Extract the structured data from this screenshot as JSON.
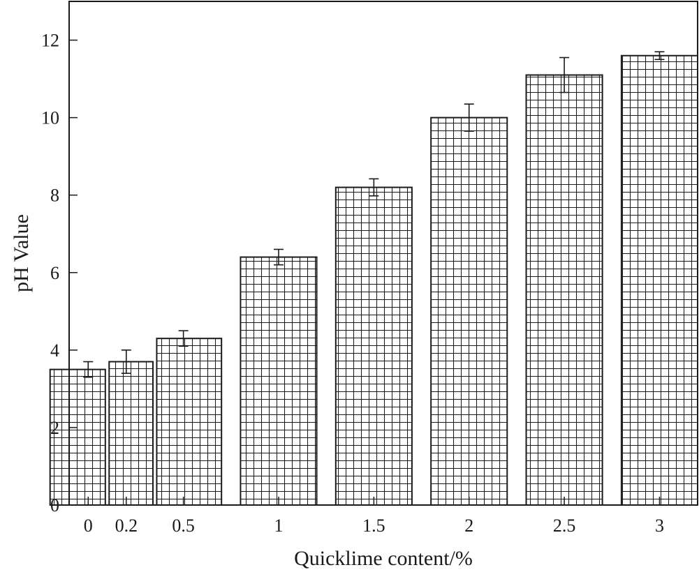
{
  "chart_data": {
    "type": "bar",
    "title": "",
    "xlabel": "Quicklime content/%",
    "ylabel": "pH Value",
    "ylim": [
      0,
      13
    ],
    "yticks": [
      0,
      2,
      4,
      6,
      8,
      10,
      12
    ],
    "grid": false,
    "categories": [
      "0",
      "0.2",
      "0.5",
      "1",
      "1.5",
      "2",
      "2.5",
      "3"
    ],
    "x": [
      0,
      0.2,
      0.5,
      1,
      1.5,
      2,
      2.5,
      3
    ],
    "xlim": [
      -0.1,
      3.2
    ],
    "bar_width": 0.4,
    "values": [
      3.5,
      3.7,
      4.3,
      6.4,
      8.2,
      10.0,
      11.1,
      11.6
    ],
    "errors": [
      0.2,
      0.3,
      0.2,
      0.2,
      0.22,
      0.35,
      0.45,
      0.1
    ],
    "pattern": "grid-hatch",
    "colors": {
      "bar_fill": "#ffffff",
      "stroke": "#1a1a1a"
    }
  }
}
